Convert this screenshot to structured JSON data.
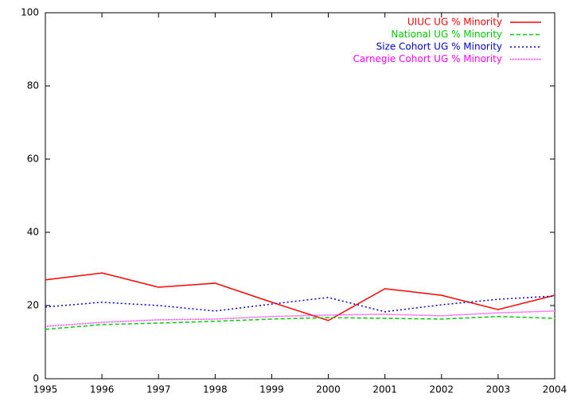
{
  "chart_data": {
    "type": "line",
    "x": [
      1995,
      1996,
      1997,
      1998,
      1999,
      2000,
      2001,
      2002,
      2003,
      2004
    ],
    "series": [
      {
        "name": "UIUC UG % Minority",
        "color": "#ff0000",
        "dash": "none",
        "values": [
          27,
          28.9,
          25,
          26.1,
          20.9,
          15.9,
          24.6,
          22.8,
          18.9,
          22.8
        ]
      },
      {
        "name": "National UG % Minority",
        "color": "#00cc00",
        "dash": "5,3",
        "values": [
          13.5,
          14.8,
          15.2,
          15.7,
          16.3,
          16.7,
          16.5,
          16.3,
          17,
          16.5
        ]
      },
      {
        "name": "Size Cohort UG % Minority",
        "color": "#0000cc",
        "dash": "2,3",
        "values": [
          19.6,
          20.9,
          20,
          18.5,
          20.4,
          22.2,
          18.3,
          20.2,
          21.7,
          22.6
        ]
      },
      {
        "name": "Carnegie Cohort UG % Minority",
        "color": "#ff00ff",
        "dash": "1,1",
        "values": [
          14.3,
          15.4,
          16.1,
          16.3,
          17,
          17.4,
          17.6,
          17.2,
          18,
          18.5
        ]
      }
    ],
    "xlim": [
      1995,
      2004
    ],
    "xticks": [
      1995,
      1996,
      1997,
      1998,
      1999,
      2000,
      2001,
      2002,
      2003,
      2004
    ],
    "ylim": [
      0,
      100
    ],
    "yticks": [
      0,
      20,
      40,
      60,
      80,
      100
    ],
    "legend": "top-right",
    "grid": false
  }
}
